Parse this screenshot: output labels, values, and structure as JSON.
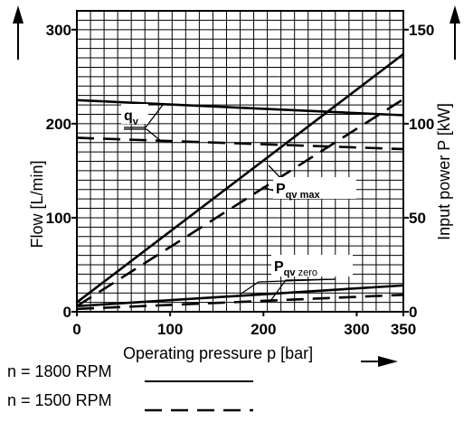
{
  "chart_data": {
    "type": "line",
    "xlabel": "Operating pressure p [bar]",
    "ylabel_left": "Flow [L/min]",
    "ylabel_right": "Input power P [kW]",
    "x_ticks": [
      "0",
      "100",
      "200",
      "300",
      "350"
    ],
    "y_left_ticks": [
      "0",
      "100",
      "200",
      "300"
    ],
    "y_right_ticks": [
      "0",
      "50",
      "100",
      "150"
    ],
    "xlim": [
      0,
      350
    ],
    "ylim_left": [
      0,
      320
    ],
    "ylim_right": [
      0,
      160
    ],
    "grid": true,
    "series": [
      {
        "axis": "left",
        "group": "qv",
        "speed": "1800",
        "x": [
          0,
          350
        ],
        "y": [
          225,
          209
        ]
      },
      {
        "axis": "left",
        "group": "qv",
        "speed": "1500",
        "x": [
          0,
          350
        ],
        "y": [
          185,
          173
        ]
      },
      {
        "axis": "right",
        "group": "Pqv_max",
        "speed": "1800",
        "x": [
          0,
          350
        ],
        "y": [
          5,
          137
        ]
      },
      {
        "axis": "right",
        "group": "Pqv_max",
        "speed": "1500",
        "x": [
          0,
          350
        ],
        "y": [
          3,
          113
        ]
      },
      {
        "axis": "right",
        "group": "Pqv_zero",
        "speed": "1800",
        "x": [
          0,
          350
        ],
        "y": [
          3,
          14
        ]
      },
      {
        "axis": "right",
        "group": "Pqv_zero",
        "speed": "1500",
        "x": [
          0,
          350
        ],
        "y": [
          1.5,
          9
        ]
      }
    ],
    "annotations": [
      {
        "main": "q",
        "sub": "v",
        "sub2": ""
      },
      {
        "main": "P",
        "sub": "qv max",
        "sub2": ""
      },
      {
        "main": "P",
        "sub": "qv",
        "sub2": "zero"
      }
    ]
  },
  "legend": [
    {
      "text": "n = 1800 RPM",
      "style": "solid"
    },
    {
      "text": "n = 1500 RPM",
      "style": "dashed"
    }
  ]
}
